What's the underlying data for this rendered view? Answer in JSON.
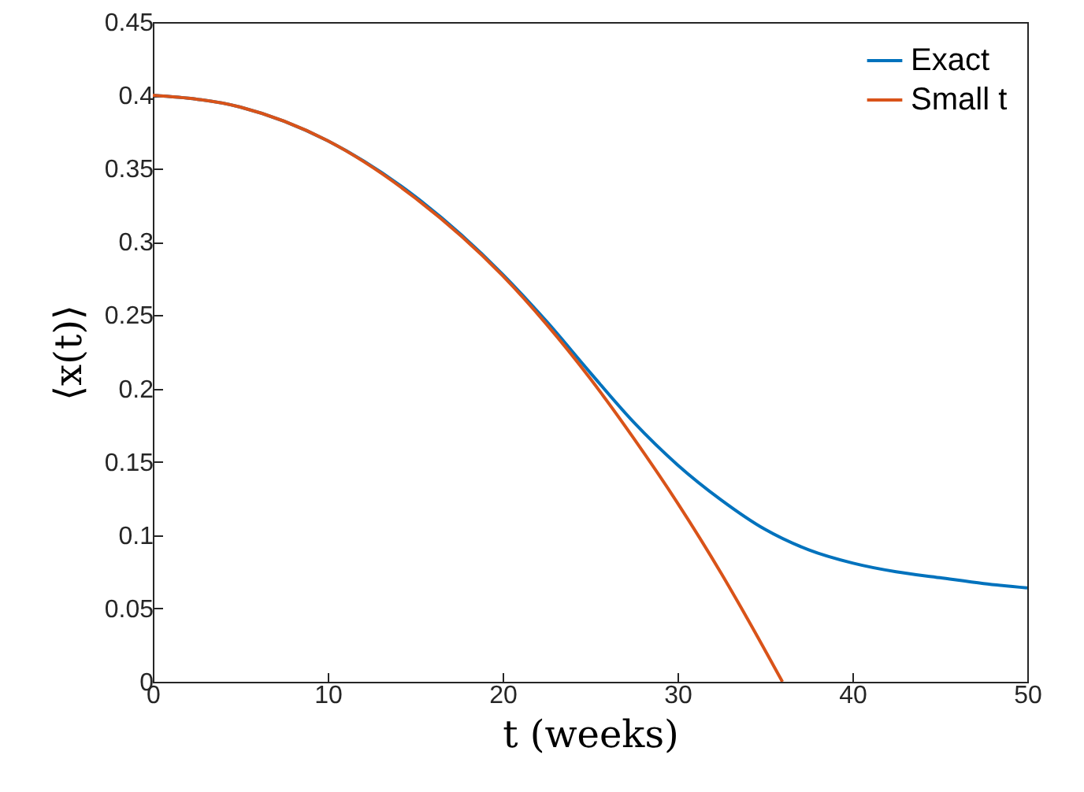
{
  "chart_data": {
    "type": "line",
    "xlabel": "t (weeks)",
    "ylabel": "⟨x(t)⟩",
    "xlim": [
      0,
      50
    ],
    "xticks": [
      0,
      10,
      20,
      30,
      40,
      50
    ],
    "ylim": [
      0,
      0.45
    ],
    "yticks": [
      0,
      0.05,
      0.1,
      0.15,
      0.2,
      0.25,
      0.3,
      0.35,
      0.4,
      0.45
    ],
    "grid": false,
    "legend": "top right",
    "line_style": "solid",
    "marker": "none",
    "series": [
      {
        "name": "Exact",
        "color": "#0072bd",
        "x": [
          0,
          5,
          10,
          15,
          20,
          22.5,
          25,
          27.5,
          30,
          32.5,
          35,
          37.5,
          40,
          42.5,
          45,
          47.5,
          50
        ],
        "values": [
          0.4,
          0.392,
          0.369,
          0.331,
          0.278,
          0.246,
          0.211,
          0.177,
          0.148,
          0.124,
          0.104,
          0.09,
          0.081,
          0.075,
          0.071,
          0.067,
          0.064
        ]
      },
      {
        "name": "Small t",
        "color": "#d95319",
        "x": [
          0,
          5,
          10,
          15,
          20,
          22.5,
          25,
          27.5,
          30,
          32.5,
          34,
          36
        ],
        "values": [
          0.4,
          0.392,
          0.369,
          0.33,
          0.277,
          0.244,
          0.207,
          0.166,
          0.122,
          0.074,
          0.043,
          0
        ]
      }
    ]
  }
}
